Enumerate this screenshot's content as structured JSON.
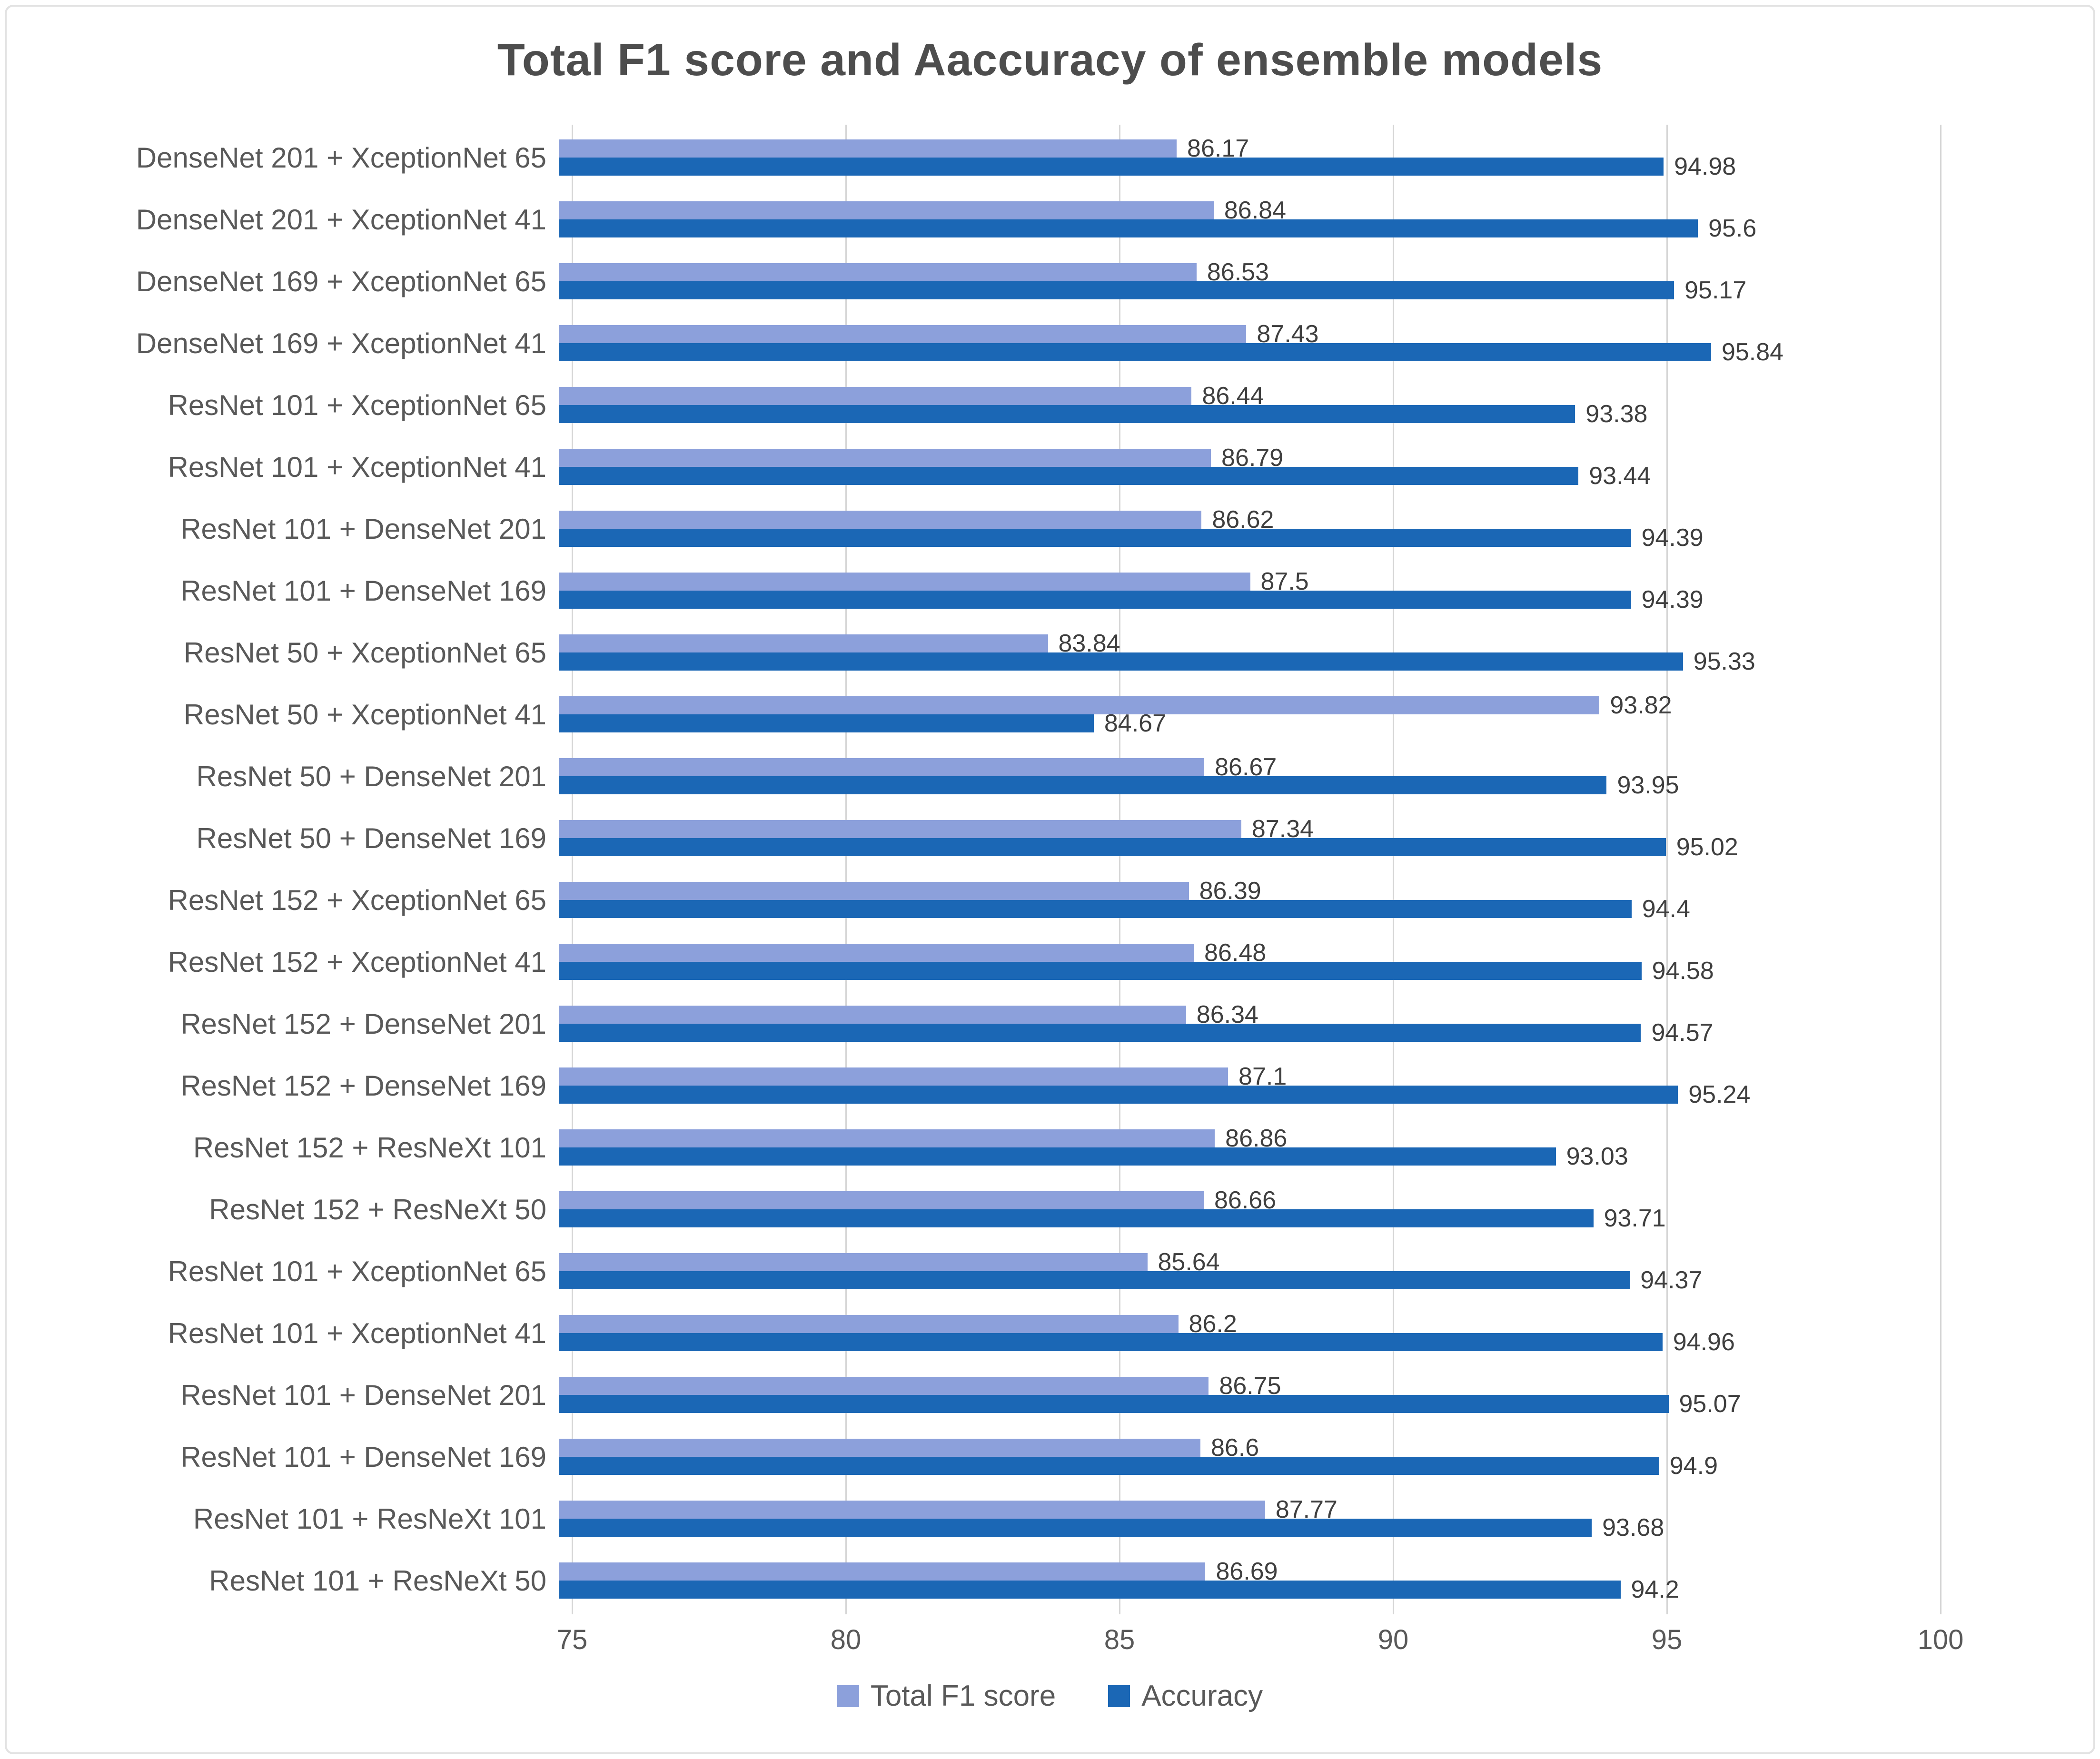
{
  "chart_data": {
    "type": "bar",
    "orientation": "horizontal",
    "title": "Total F1 score and Aaccuracy of ensemble models",
    "categories": [
      "DenseNet 201 + XceptionNet 65",
      "DenseNet 201 + XceptionNet 41",
      "DenseNet 169 + XceptionNet 65",
      "DenseNet 169 + XceptionNet 41",
      "ResNet 101 + XceptionNet 65",
      "ResNet 101 + XceptionNet 41",
      "ResNet 101 + DenseNet 201",
      "ResNet 101 + DenseNet 169",
      "ResNet 50 + XceptionNet 65",
      "ResNet 50 + XceptionNet 41",
      "ResNet 50 + DenseNet 201",
      "ResNet 50 + DenseNet 169",
      "ResNet 152 + XceptionNet 65",
      "ResNet 152 + XceptionNet 41",
      "ResNet 152 + DenseNet 201",
      "ResNet 152 + DenseNet 169",
      "ResNet 152 + ResNeXt 101",
      "ResNet 152 + ResNeXt 50",
      "ResNet 101 + XceptionNet 65",
      "ResNet 101 + XceptionNet 41",
      "ResNet 101 + DenseNet 201",
      "ResNet 101 + DenseNet 169",
      "ResNet 101 + ResNeXt 101",
      "ResNet 101 + ResNeXt 50"
    ],
    "series": [
      {
        "name": "Total F1 score",
        "color": "#8CA0DB",
        "values": [
          86.17,
          86.84,
          86.53,
          87.43,
          86.44,
          86.79,
          86.62,
          87.5,
          83.84,
          93.82,
          86.67,
          87.34,
          86.39,
          86.48,
          86.34,
          87.1,
          86.86,
          86.66,
          85.64,
          86.2,
          86.75,
          86.6,
          87.77,
          86.69
        ]
      },
      {
        "name": "Accuracy",
        "color": "#1B67B5",
        "values": [
          94.98,
          95.6,
          95.17,
          95.84,
          93.38,
          93.44,
          94.39,
          94.39,
          95.33,
          84.67,
          93.95,
          95.02,
          94.4,
          94.58,
          94.57,
          95.24,
          93.03,
          93.71,
          94.37,
          94.96,
          95.07,
          94.9,
          93.68,
          94.2
        ]
      }
    ],
    "xlim": [
      75,
      100
    ],
    "x_ticks": [
      75,
      80,
      85,
      90,
      95,
      100
    ],
    "grid": true,
    "legend_position": "bottom"
  }
}
